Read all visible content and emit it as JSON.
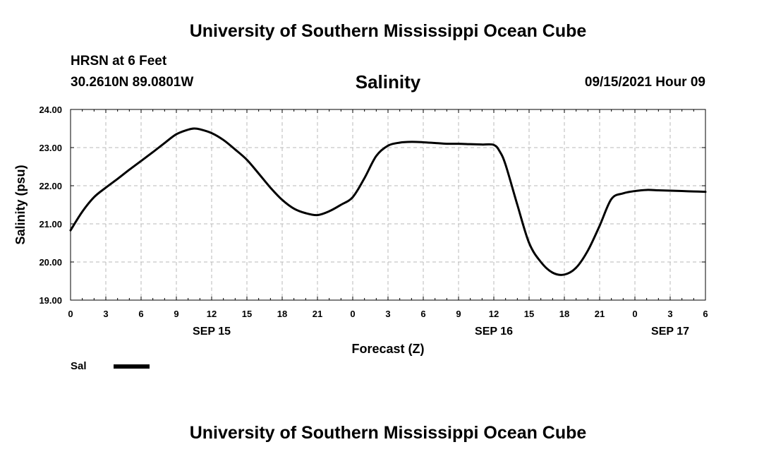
{
  "header": {
    "institution": "University of Southern Mississippi Ocean Cube",
    "station": "HRSN at 6 Feet",
    "coordinates": "30.2610N  89.0801W",
    "product": "Salinity",
    "issued": "09/15/2021 Hour 09"
  },
  "footer": {
    "institution": "University of Southern Mississippi Ocean Cube"
  },
  "legend": {
    "label": "Sal",
    "color": "#000000"
  },
  "chart_data": {
    "type": "line",
    "title": "Salinity",
    "xlabel": "Forecast (Z)",
    "ylabel": "Salinity (psu)",
    "xlim": [
      0,
      54
    ],
    "ylim": [
      19,
      24
    ],
    "x_unit": "hours since 09/15 00Z",
    "x_tick_values": [
      0,
      3,
      6,
      9,
      12,
      15,
      18,
      21,
      24,
      27,
      30,
      33,
      36,
      39,
      42,
      45,
      48,
      51,
      54
    ],
    "x_tick_labels": [
      "0",
      "3",
      "6",
      "9",
      "12",
      "15",
      "18",
      "21",
      "0",
      "3",
      "6",
      "9",
      "12",
      "15",
      "18",
      "21",
      "0",
      "3",
      "6"
    ],
    "day_labels": [
      {
        "x": 12,
        "label": "SEP 15"
      },
      {
        "x": 36,
        "label": "SEP 16"
      },
      {
        "x": 51,
        "label": "SEP 17"
      }
    ],
    "y_ticks": [
      19,
      20,
      21,
      22,
      23,
      24
    ],
    "y_tick_labels": [
      "19.00",
      "20.00",
      "21.00",
      "22.00",
      "23.00",
      "24.00"
    ],
    "grid": true,
    "series": [
      {
        "name": "Sal",
        "color": "#000000",
        "x": [
          0,
          1,
          2,
          3,
          4,
          5,
          6,
          7,
          8,
          9,
          10,
          10.5,
          11,
          12,
          13,
          14,
          15,
          16,
          17,
          18,
          19,
          20,
          21,
          22,
          23,
          24,
          25,
          26,
          27,
          28,
          29,
          30,
          31,
          32,
          33,
          34,
          35,
          36,
          36.5,
          37,
          38,
          39,
          40,
          41,
          42,
          43,
          44,
          45,
          46,
          47,
          48,
          49,
          50,
          51,
          52,
          53,
          54
        ],
        "values": [
          20.83,
          21.32,
          21.7,
          21.95,
          22.18,
          22.42,
          22.65,
          22.88,
          23.12,
          23.35,
          23.47,
          23.5,
          23.48,
          23.38,
          23.2,
          22.95,
          22.68,
          22.32,
          21.95,
          21.63,
          21.4,
          21.28,
          21.23,
          21.33,
          21.5,
          21.7,
          22.2,
          22.78,
          23.05,
          23.13,
          23.15,
          23.14,
          23.12,
          23.1,
          23.1,
          23.09,
          23.08,
          23.07,
          22.9,
          22.55,
          21.5,
          20.5,
          20.0,
          19.72,
          19.67,
          19.85,
          20.3,
          20.95,
          21.65,
          21.8,
          21.86,
          21.89,
          21.88,
          21.87,
          21.86,
          21.85,
          21.84
        ]
      }
    ]
  }
}
